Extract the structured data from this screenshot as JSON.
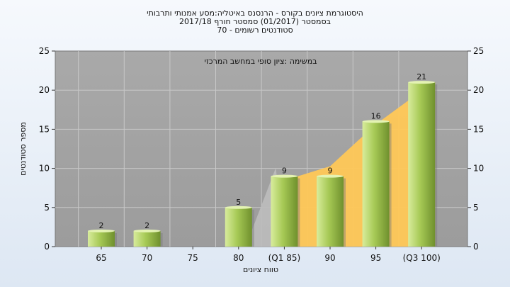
{
  "chart_data": {
    "type": "bar",
    "title_lines": [
      "היסטוגרמת ציונים בקורס - הרנסנס באיטליה:מסע אמנותי ותרבותי",
      "בסמסטר  (01/2017)  סמסטר חורף  2017/18",
      "סטודנטים רשומים - 70"
    ],
    "annotation": "במשימה :ציון סופי במחשב המרכזי",
    "xlabel": "טווח ציונים",
    "ylabel": "מספר סטודנטים",
    "categories": [
      "65",
      "70",
      "75",
      "80",
      "(Q1 85)",
      "90",
      "95",
      "(Q3 100)"
    ],
    "values": [
      2,
      2,
      null,
      5,
      9,
      9,
      16,
      21
    ],
    "ylim": [
      0,
      25
    ],
    "yticks": [
      0,
      5,
      10,
      15,
      20,
      25
    ],
    "grid": true,
    "area_overlay": {
      "description_colors": {
        "area": "#ffc857",
        "shadow": "#b8b8b8"
      }
    },
    "colors": {
      "bar_light": "#d6eb9a",
      "bar_mid": "#9cc24a",
      "bar_dark": "#6e8f2c",
      "plot_bg": "#a6a6a6"
    }
  }
}
